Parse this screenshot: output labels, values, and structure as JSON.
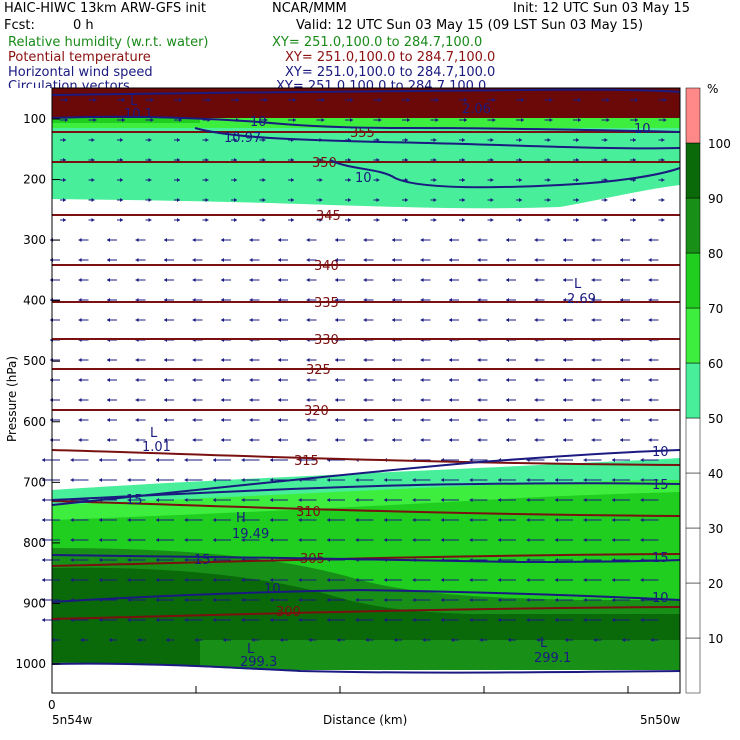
{
  "header": {
    "title_left": "HAIC-HIWC 13km ARW-GFS init",
    "org": "NCAR/MMM",
    "init": "Init: 12 UTC Sun 03 May 15",
    "fcst_label": "Fcst:",
    "fcst_value": "0 h",
    "valid": "Valid: 12 UTC Sun 03 May 15 (09 LST Sun 03 May 15)",
    "fields": [
      {
        "name": "Relative humidity (w.r.t. water)",
        "xy": "XY= 251.0,100.0 to 284.7,100.0",
        "color": "#1a8a1a"
      },
      {
        "name": "Potential temperature",
        "xy": "XY= 251.0,100.0 to 284.7,100.0",
        "color": "#8b1010"
      },
      {
        "name": "Horizontal wind speed",
        "xy": "XY= 251.0,100.0 to 284.7,100.0",
        "color": "#1a1a80"
      },
      {
        "name": "Circulation vectors",
        "xy": "XY= 251.0,100.0 to 284.7,100.0",
        "color": "#1a1a80"
      }
    ]
  },
  "chart_data": {
    "type": "heatmap",
    "xlabel": "Distance (km)",
    "ylabel": "Pressure (hPa)",
    "x_start_label": "5n54w",
    "x_end_label": "5n50w",
    "x_tick_zero": "0",
    "y_ticks": [
      100,
      200,
      300,
      400,
      500,
      600,
      700,
      800,
      900,
      1000
    ],
    "colorbar": {
      "unit": "%",
      "labels": [
        10,
        20,
        30,
        40,
        50,
        60,
        70,
        80,
        90,
        100
      ],
      "colors": [
        "#ffffff",
        "#ffffff",
        "#ffffff",
        "#ffffff",
        "#ffffff",
        "#48ee9a",
        "#3eee3e",
        "#1fce1f",
        "#189018",
        "#0a6a0a",
        "#ff8888"
      ]
    },
    "rh_colors": {
      "50": "#48ee9a",
      "60": "#3eee3e",
      "70": "#1fce1f",
      "80": "#189018",
      "90": "#0a6a0a",
      "100": "#6b0808"
    },
    "theta_contours": [
      {
        "value": "300",
        "y": 300
      },
      {
        "value": "305",
        "y": 305
      },
      {
        "value": "310",
        "y": 310
      },
      {
        "value": "315",
        "y": 315
      },
      {
        "value": "320",
        "y": 320
      },
      {
        "value": "325",
        "y": 325
      },
      {
        "value": "330",
        "y": 330
      },
      {
        "value": "335",
        "y": 335
      },
      {
        "value": "340",
        "y": 340
      },
      {
        "value": "345",
        "y": 345
      },
      {
        "value": "350",
        "y": 350
      },
      {
        "value": "355",
        "y": 355
      }
    ],
    "wind_labels": [
      {
        "text": "10"
      },
      {
        "text": "15"
      },
      {
        "text": "10"
      },
      {
        "text": "15"
      },
      {
        "text": "15"
      },
      {
        "text": "15"
      },
      {
        "text": "10"
      },
      {
        "text": "10"
      },
      {
        "text": "10"
      },
      {
        "text": "10"
      }
    ],
    "extrema": [
      {
        "mark": "L",
        "value": "10.1"
      },
      {
        "mark": "L",
        "value": "10.97"
      },
      {
        "mark": "L",
        "value": "2.69"
      },
      {
        "mark": "L",
        "value": "1.01"
      },
      {
        "mark": "H",
        "value": "19.49"
      },
      {
        "mark": "L",
        "value": "299.3"
      },
      {
        "mark": "L",
        "value": "299.1"
      },
      {
        "mark": "",
        "value": "2.06"
      }
    ]
  }
}
